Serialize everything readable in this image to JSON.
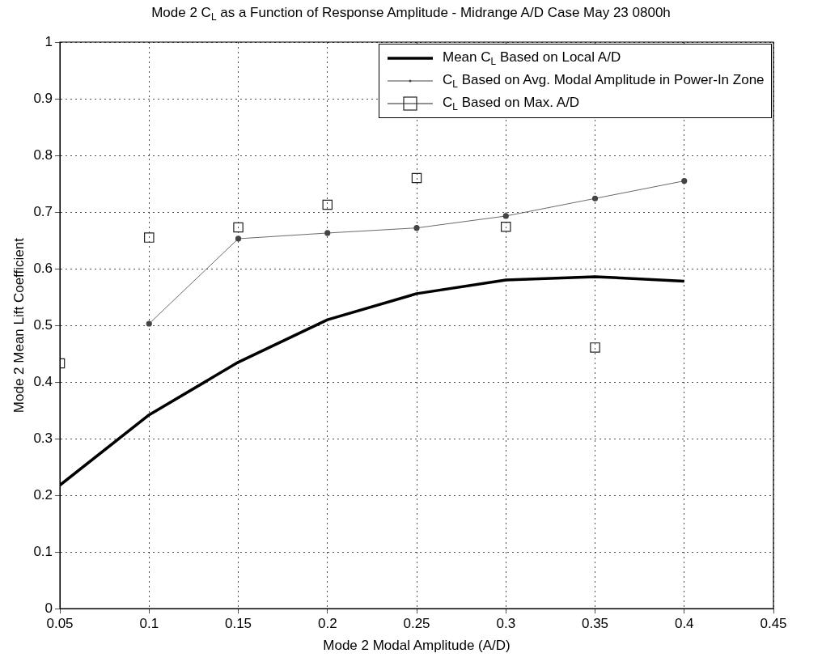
{
  "chart_data": {
    "type": "line",
    "title": "Mode 2 C$_{L}$ as a Function of Response Amplitude - Midrange A/D Case May 23 0800h",
    "xlabel": "Mode 2 Modal Amplitude (A/D)",
    "ylabel": "Mode 2 Mean Lift Coefficient",
    "x": [
      0.05,
      0.1,
      0.15,
      0.2,
      0.25,
      0.3,
      0.35,
      0.4
    ],
    "series": [
      {
        "name": "Mean C$_{L}$ Based on Local A/D",
        "color": "#000000",
        "marker": "none",
        "values": [
          0.218,
          0.342,
          0.435,
          0.51,
          0.556,
          0.58,
          0.586,
          0.578
        ]
      },
      {
        "name": "C$_{L}$ Based on Avg. Modal Amplitude in Power-In Zone",
        "color": "#444444",
        "marker": "circle",
        "values": [
          null,
          0.503,
          0.653,
          0.663,
          0.672,
          0.693,
          0.724,
          0.755
        ]
      },
      {
        "name": "C$_{L}$ Based on Max. A/D",
        "type": "scatter",
        "color": "#222222",
        "marker": "square",
        "values": [
          0.433,
          0.655,
          0.673,
          0.713,
          0.76,
          0.674,
          0.461,
          null
        ]
      }
    ],
    "xlim": [
      0.05,
      0.45
    ],
    "xticks": [
      0.05,
      0.1,
      0.15,
      0.2,
      0.25,
      0.3,
      0.35,
      0.4,
      0.45
    ],
    "ylim": [
      0,
      1
    ],
    "yticks": [
      0,
      0.1,
      0.2,
      0.3,
      0.4,
      0.5,
      0.6,
      0.7,
      0.8,
      0.9,
      1
    ],
    "grid": true,
    "legend": "top right"
  }
}
